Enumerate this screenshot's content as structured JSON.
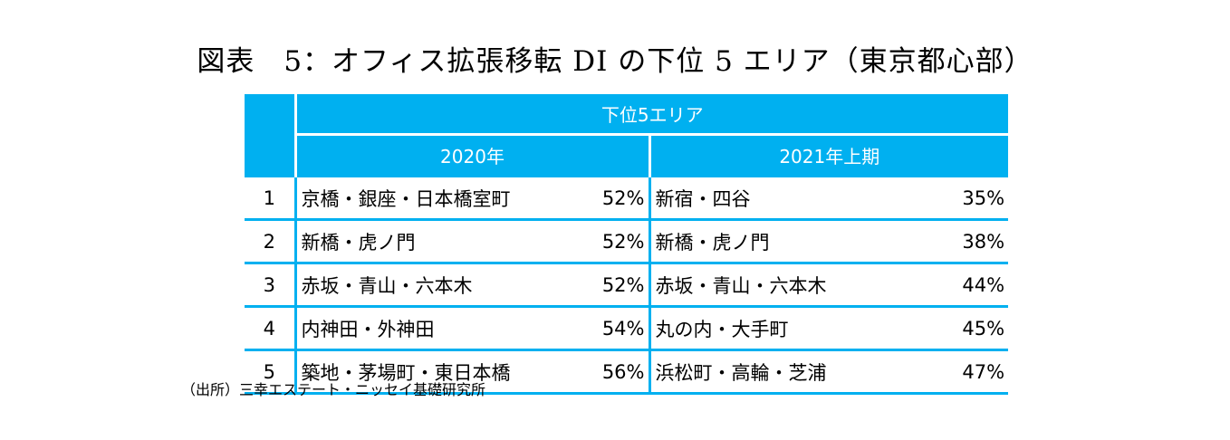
{
  "title": "図表　5：オフィス拡張移転 DI の下位 5 エリア（東京都心部）",
  "table": {
    "group_header": "下位5エリア",
    "periods": [
      "2020年",
      "2021年上期"
    ],
    "rows": [
      {
        "rank": "1",
        "area_2020": "京橋・銀座・日本橋室町",
        "pct_2020": "52%",
        "area_2021": "新宿・四谷",
        "pct_2021": "35%"
      },
      {
        "rank": "2",
        "area_2020": "新橋・虎ノ門",
        "pct_2020": "52%",
        "area_2021": "新橋・虎ノ門",
        "pct_2021": "38%"
      },
      {
        "rank": "3",
        "area_2020": "赤坂・青山・六本木",
        "pct_2020": "52%",
        "area_2021": "赤坂・青山・六本木",
        "pct_2021": "44%"
      },
      {
        "rank": "4",
        "area_2020": "内神田・外神田",
        "pct_2020": "54%",
        "area_2021": "丸の内・大手町",
        "pct_2021": "45%"
      },
      {
        "rank": "5",
        "area_2020": "築地・茅場町・東日本橋",
        "pct_2020": "56%",
        "area_2021": "浜松町・高輪・芝浦",
        "pct_2021": "47%"
      }
    ]
  },
  "source": "（出所）三幸エステート・ニッセイ基礎研究所",
  "colors": {
    "header_bg": "#00b0f0",
    "header_text": "#ffffff",
    "border": "#00b0f0"
  }
}
